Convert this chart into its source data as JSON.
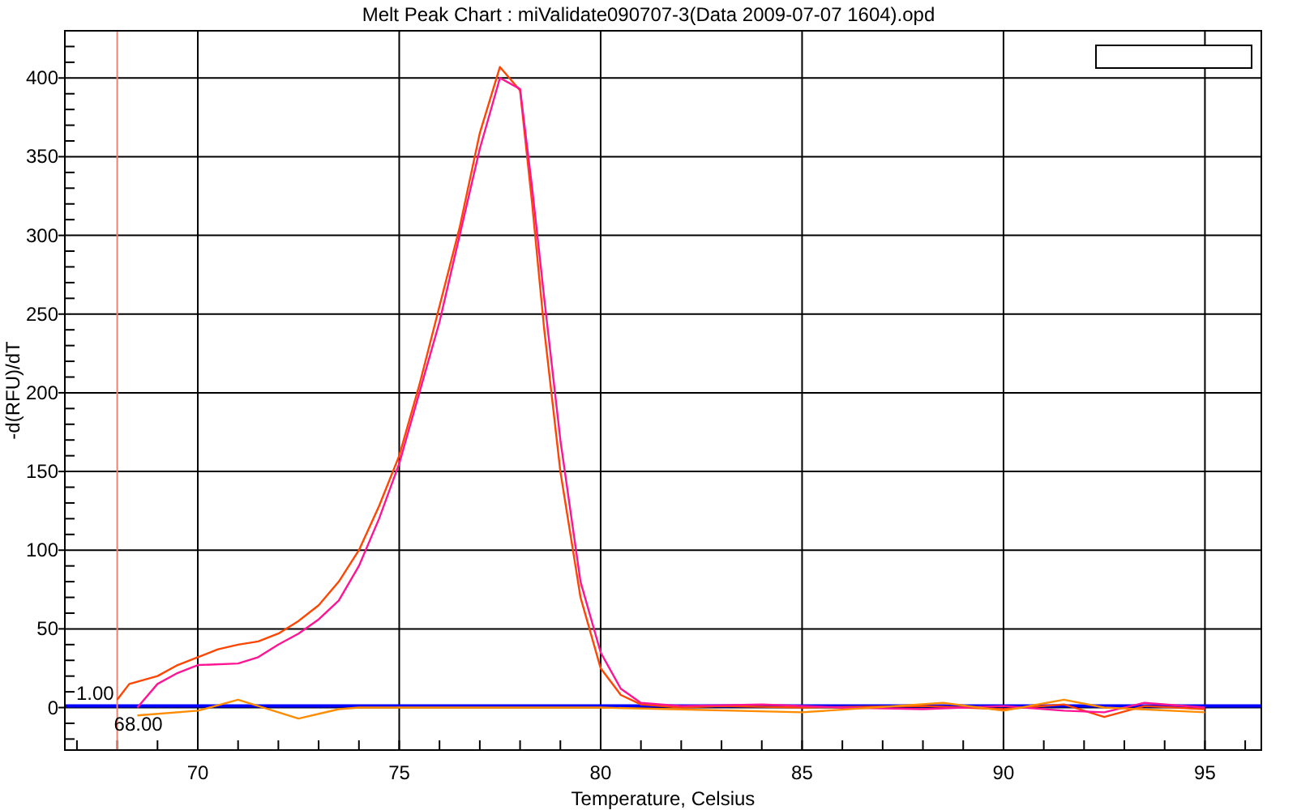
{
  "chart_data": {
    "type": "line",
    "title": "Melt Peak Chart : miValidate090707-3(Data 2009-07-07 1604).opd",
    "xlabel": "Temperature, Celsius",
    "ylabel": "-d(RFU)/dT",
    "xlim": [
      66.7,
      96.4
    ],
    "ylim": [
      -27,
      430
    ],
    "xticks": [
      {
        "value": 67,
        "label": null
      },
      {
        "value": 68,
        "label": null
      },
      {
        "value": 69,
        "label": null
      },
      70,
      {
        "value": 71,
        "label": null
      },
      {
        "value": 72,
        "label": null
      },
      {
        "value": 73,
        "label": null
      },
      {
        "value": 74,
        "label": null
      },
      75,
      {
        "value": 76,
        "label": null
      },
      {
        "value": 77,
        "label": null
      },
      {
        "value": 78,
        "label": null
      },
      {
        "value": 79,
        "label": null
      },
      80,
      {
        "value": 81,
        "label": null
      },
      {
        "value": 82,
        "label": null
      },
      {
        "value": 83,
        "label": null
      },
      {
        "value": 84,
        "label": null
      },
      85,
      {
        "value": 86,
        "label": null
      },
      {
        "value": 87,
        "label": null
      },
      {
        "value": 88,
        "label": null
      },
      {
        "value": 89,
        "label": null
      },
      90,
      {
        "value": 91,
        "label": null
      },
      {
        "value": 92,
        "label": null
      },
      {
        "value": 93,
        "label": null
      },
      {
        "value": 94,
        "label": null
      },
      95,
      {
        "value": 96,
        "label": null
      }
    ],
    "yticks": [
      {
        "value": -20,
        "label": null
      },
      {
        "value": -10,
        "label": null
      },
      0,
      {
        "value": 10,
        "label": null
      },
      {
        "value": 20,
        "label": null
      },
      {
        "value": 30,
        "label": null
      },
      {
        "value": 40,
        "label": null
      },
      50,
      {
        "value": 60,
        "label": null
      },
      {
        "value": 70,
        "label": null
      },
      {
        "value": 80,
        "label": null
      },
      {
        "value": 90,
        "label": null
      },
      100,
      {
        "value": 110,
        "label": null
      },
      {
        "value": 120,
        "label": null
      },
      {
        "value": 130,
        "label": null
      },
      {
        "value": 140,
        "label": null
      },
      150,
      {
        "value": 160,
        "label": null
      },
      {
        "value": 170,
        "label": null
      },
      {
        "value": 180,
        "label": null
      },
      {
        "value": 190,
        "label": null
      },
      200,
      {
        "value": 210,
        "label": null
      },
      {
        "value": 220,
        "label": null
      },
      {
        "value": 230,
        "label": null
      },
      {
        "value": 240,
        "label": null
      },
      250,
      {
        "value": 260,
        "label": null
      },
      {
        "value": 270,
        "label": null
      },
      {
        "value": 280,
        "label": null
      },
      {
        "value": 290,
        "label": null
      },
      300,
      {
        "value": 310,
        "label": null
      },
      {
        "value": 320,
        "label": null
      },
      {
        "value": 330,
        "label": null
      },
      {
        "value": 340,
        "label": null
      },
      350,
      {
        "value": 360,
        "label": null
      },
      {
        "value": 370,
        "label": null
      },
      {
        "value": 380,
        "label": null
      },
      {
        "value": 390,
        "label": null
      },
      400,
      {
        "value": 410,
        "label": null
      },
      {
        "value": 420,
        "label": null
      }
    ],
    "grid": true,
    "marker": "none",
    "line_style": "solid",
    "series": [
      {
        "color": "#ff4500",
        "x": [
          68,
          68.3,
          69,
          69.5,
          70,
          70.5,
          71,
          71.5,
          72,
          72.5,
          73,
          73.5,
          74,
          74.5,
          75,
          75.5,
          76,
          76.5,
          77,
          77.5,
          78,
          78.3,
          78.6,
          79,
          79.5,
          80,
          80.5,
          81,
          82,
          83,
          85,
          88,
          90,
          91.5,
          92.5,
          93.5,
          95
        ],
        "values": [
          5,
          15,
          20,
          27,
          32,
          37,
          40,
          42,
          47,
          55,
          65,
          80,
          100,
          128,
          160,
          205,
          255,
          305,
          365,
          407,
          392,
          320,
          240,
          150,
          70,
          25,
          8,
          2,
          0,
          1,
          0,
          1,
          -1,
          2,
          -6,
          1,
          -1
        ]
      },
      {
        "color": "#ff1493",
        "x": [
          68.5,
          69,
          69.5,
          70,
          71,
          71.5,
          72,
          72.5,
          73,
          73.5,
          74,
          74.5,
          75,
          75.5,
          76,
          76.5,
          77,
          77.5,
          78,
          78.3,
          78.6,
          79,
          79.5,
          80,
          80.5,
          81,
          82,
          84,
          86,
          88,
          90,
          91.5,
          92.5,
          93.5,
          95
        ],
        "values": [
          0,
          15,
          22,
          27,
          28,
          32,
          40,
          47,
          56,
          68,
          90,
          120,
          155,
          200,
          245,
          300,
          355,
          400,
          393,
          330,
          260,
          170,
          80,
          35,
          12,
          3,
          1,
          2,
          0,
          -1,
          1,
          -2,
          -3,
          3,
          0
        ]
      },
      {
        "color": "#ff8c00",
        "x": [
          68.5,
          70,
          71,
          72.5,
          73.5,
          74,
          80,
          85,
          88.5,
          90,
          91.5,
          92.5,
          95
        ],
        "values": [
          -5,
          -2,
          5,
          -7,
          -1,
          0,
          0,
          -3,
          3,
          -2,
          5,
          0,
          -3
        ]
      }
    ],
    "ref_lines": [
      {
        "axis": "y",
        "value": 1,
        "label": "1.00",
        "color": "#0000ff"
      },
      {
        "axis": "x",
        "value": 68,
        "label": "68.00",
        "color": "#f08070"
      }
    ]
  }
}
